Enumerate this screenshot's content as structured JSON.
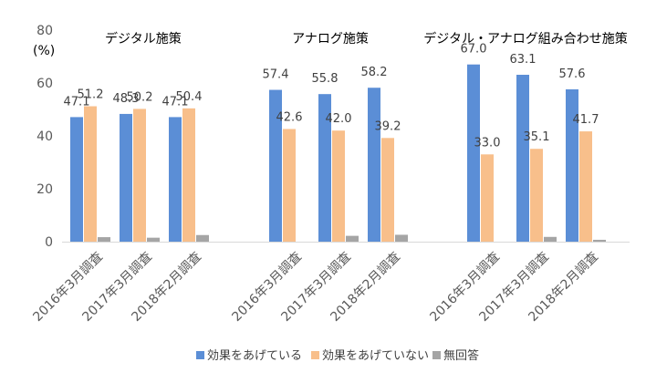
{
  "chart_data": {
    "type": "bar",
    "unit_label": "(%)",
    "ylim": [
      0,
      80
    ],
    "yticks": [
      0,
      20,
      40,
      60,
      80
    ],
    "grid": false,
    "legend_position": "bottom",
    "groups": [
      {
        "title": "デジタル施策",
        "categories": [
          "2016年3月調査",
          "2017年3月調査",
          "2018年2月調査"
        ],
        "series": [
          {
            "name": "効果をあげている",
            "values": [
              47.1,
              48.3,
              47.1
            ]
          },
          {
            "name": "効果をあげていない",
            "values": [
              51.2,
              50.2,
              50.4
            ]
          },
          {
            "name": "無回答",
            "values": [
              1.7,
              1.5,
              2.5
            ]
          }
        ]
      },
      {
        "title": "アナログ施策",
        "categories": [
          "2016年3月調査",
          "2017年3月調査",
          "2018年2月調査"
        ],
        "series": [
          {
            "name": "効果をあげている",
            "values": [
              57.4,
              55.8,
              58.2
            ]
          },
          {
            "name": "効果をあげていない",
            "values": [
              42.6,
              42.0,
              39.2
            ]
          },
          {
            "name": "無回答",
            "values": [
              0.0,
              2.2,
              2.6
            ]
          }
        ]
      },
      {
        "title": "デジタル・アナログ組み合わせ施策",
        "categories": [
          "2016年3月調査",
          "2017年3月調査",
          "2018年2月調査"
        ],
        "series": [
          {
            "name": "効果をあげている",
            "values": [
              67.0,
              63.1,
              57.6
            ]
          },
          {
            "name": "効果をあげていない",
            "values": [
              33.0,
              35.1,
              41.7
            ]
          },
          {
            "name": "無回答",
            "values": [
              0.0,
              1.8,
              0.7
            ]
          }
        ]
      }
    ],
    "labeled_series": [
      0,
      1
    ],
    "colors": [
      "#5b8ed6",
      "#f8bf8b",
      "#a5a5a5"
    ]
  }
}
